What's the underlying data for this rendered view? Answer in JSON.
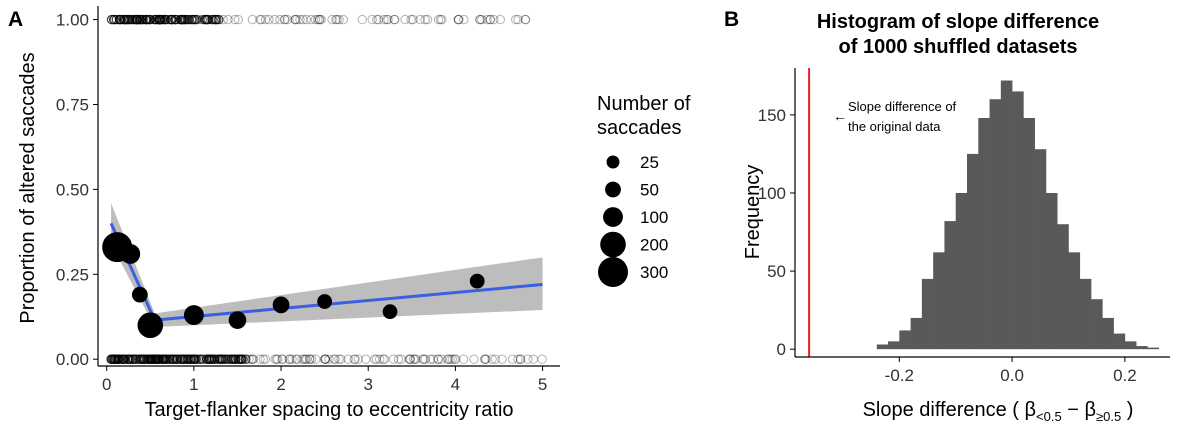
{
  "panel_a": {
    "label": "A",
    "chart_data": {
      "type": "scatter",
      "xlabel": "Target-flanker spacing to eccentricity ratio",
      "ylabel": "Proportion of altered saccades",
      "xlim": [
        -0.1,
        5.2
      ],
      "ylim": [
        -0.02,
        1.04
      ],
      "x_ticks": [
        0,
        1,
        2,
        3,
        4,
        5
      ],
      "x_tick_labels": [
        "0",
        "1",
        "2",
        "3",
        "4",
        "5"
      ],
      "y_ticks": [
        0,
        0.25,
        0.5,
        0.75,
        1
      ],
      "y_tick_labels": [
        "0.00",
        "0.25",
        "0.50",
        "0.75",
        "1.00"
      ],
      "mean_points": [
        {
          "x": 0.12,
          "y": 0.33,
          "n": 300
        },
        {
          "x": 0.27,
          "y": 0.31,
          "n": 100
        },
        {
          "x": 0.38,
          "y": 0.19,
          "n": 50
        },
        {
          "x": 0.5,
          "y": 0.1,
          "n": 200
        },
        {
          "x": 1.0,
          "y": 0.13,
          "n": 100
        },
        {
          "x": 1.5,
          "y": 0.115,
          "n": 70
        },
        {
          "x": 2.0,
          "y": 0.16,
          "n": 60
        },
        {
          "x": 2.5,
          "y": 0.17,
          "n": 40
        },
        {
          "x": 3.25,
          "y": 0.14,
          "n": 40
        },
        {
          "x": 4.25,
          "y": 0.23,
          "n": 40
        }
      ],
      "fit_line": {
        "color": "#3b5fe0",
        "x": [
          0.05,
          0.55,
          5.0
        ],
        "y": [
          0.4,
          0.115,
          0.22
        ],
        "ci_upper": [
          0.46,
          0.135,
          0.3
        ],
        "ci_lower": [
          0.34,
          0.095,
          0.145
        ]
      },
      "raw_rows": [
        {
          "y": 1.0,
          "x_min": 0.05,
          "x_max": 4.85,
          "count": 200,
          "dense_max": 1.3
        },
        {
          "y": 0.0,
          "x_min": 0.05,
          "x_max": 5.0,
          "count": 290,
          "dense_max": 1.6
        }
      ]
    },
    "legend": {
      "title_line1": "Number of",
      "title_line2": "saccades",
      "entries": [
        {
          "label": "25",
          "n": 25
        },
        {
          "label": "50",
          "n": 50
        },
        {
          "label": "100",
          "n": 100
        },
        {
          "label": "200",
          "n": 200
        },
        {
          "label": "300",
          "n": 300
        }
      ]
    }
  },
  "panel_b": {
    "label": "B",
    "chart_data": {
      "type": "bar",
      "title_line1": "Histogram of slope difference",
      "title_line2": "of 1000 shuffled datasets",
      "xlabel_prefix": "Slope difference ( β",
      "xlabel_sub1": "<0.5",
      "xlabel_mid": " − β",
      "xlabel_sub2": "≥0.5",
      "xlabel_suffix": " )",
      "ylabel": "Frequency",
      "xlim": [
        -0.385,
        0.28
      ],
      "ylim": [
        -5,
        180
      ],
      "x_ticks": [
        -0.2,
        0,
        0.2
      ],
      "x_tick_labels": [
        "-0.2",
        "0.0",
        "0.2"
      ],
      "y_ticks": [
        0,
        50,
        100,
        150
      ],
      "y_tick_labels": [
        "0",
        "50",
        "100",
        "150"
      ],
      "bin_width": 0.02,
      "bin_starts": [
        -0.24,
        -0.22,
        -0.2,
        -0.18,
        -0.16,
        -0.14,
        -0.12,
        -0.1,
        -0.08,
        -0.06,
        -0.04,
        -0.02,
        0.0,
        0.02,
        0.04,
        0.06,
        0.08,
        0.1,
        0.12,
        0.14,
        0.16,
        0.18,
        0.2,
        0.22,
        0.24
      ],
      "frequencies": [
        3,
        5,
        12,
        20,
        45,
        62,
        82,
        100,
        125,
        148,
        160,
        172,
        165,
        148,
        128,
        100,
        80,
        62,
        45,
        32,
        20,
        10,
        5,
        2,
        1
      ],
      "bar_color": "#595959",
      "reference_line": {
        "x": -0.36,
        "color": "#e8222a"
      },
      "annotation_line1": "Slope difference of",
      "annotation_line2": "the original data",
      "annotation_arrow": "←"
    }
  }
}
